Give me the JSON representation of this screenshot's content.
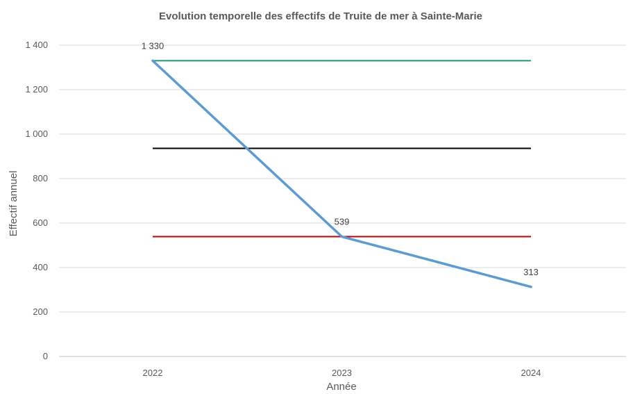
{
  "chart_data": {
    "type": "line",
    "title": "Evolution temporelle des effectifs de Truite de mer à Sainte-Marie",
    "xlabel": "Année",
    "ylabel": "Effectif annuel",
    "categories": [
      "2022",
      "2023",
      "2024"
    ],
    "ylim": [
      0,
      1400
    ],
    "y_ticks": [
      0,
      200,
      400,
      600,
      800,
      1000,
      1200,
      1400
    ],
    "y_tick_labels": [
      "0",
      "200",
      "400",
      "600",
      "800",
      "1 000",
      "1 200",
      "1 400"
    ],
    "grid": true,
    "legend": "none",
    "series": [
      {
        "values": [
          1330,
          539,
          313
        ],
        "data_labels": [
          "1 330",
          "539",
          "313"
        ],
        "color": "#5b9bd5"
      }
    ],
    "reference_lines": [
      {
        "value": 1330,
        "color": "#1a9a6c"
      },
      {
        "value": 936,
        "color": "#000000"
      },
      {
        "value": 539,
        "color": "#c00000"
      }
    ]
  }
}
